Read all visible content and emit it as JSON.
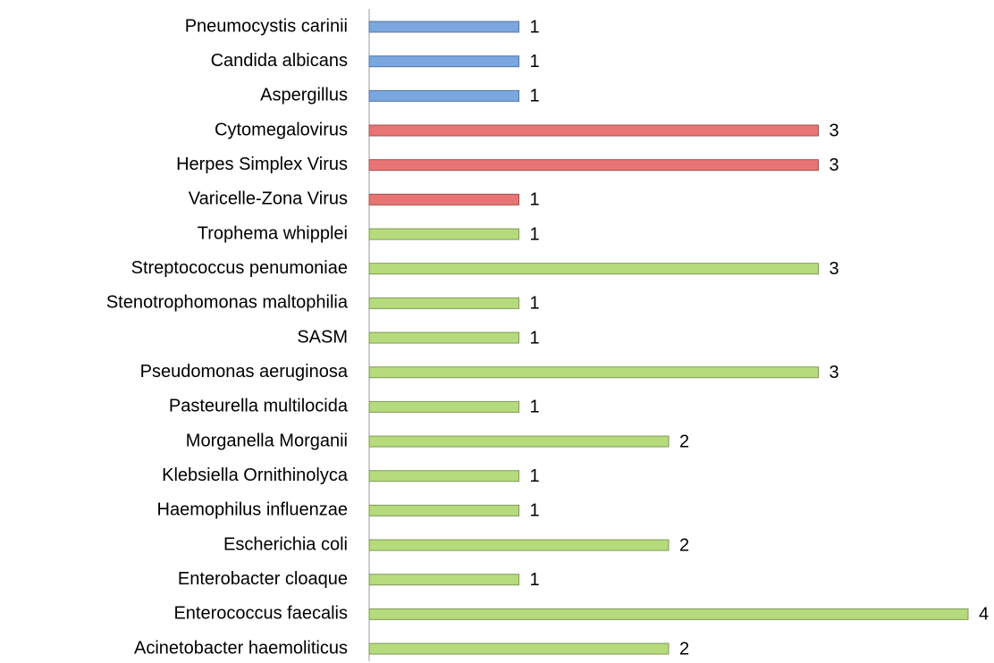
{
  "chart_data": {
    "type": "hbar",
    "categories": [
      "Pneumocystis carinii",
      "Candida albicans",
      "Aspergillus",
      "Cytomegalovirus",
      "Herpes Simplex Virus",
      "Varicelle-Zona Virus",
      "Trophema whipplei",
      "Streptococcus penumoniae",
      "Stenotrophomonas maltophilia",
      "SASM",
      "Pseudomonas aeruginosa",
      "Pasteurella multilocida",
      "Morganella Morganii",
      "Klebsiella Ornithinolyca",
      "Haemophilus influenzae",
      "Escherichia coli",
      "Enterobacter cloaque",
      "Enterococcus faecalis",
      "Acinetobacter haemoliticus"
    ],
    "values": [
      1,
      1,
      1,
      3,
      3,
      1,
      1,
      3,
      1,
      1,
      3,
      1,
      2,
      1,
      1,
      2,
      1,
      4,
      2
    ],
    "colors": [
      "#7ba7e0",
      "#7ba7e0",
      "#7ba7e0",
      "#e87474",
      "#e87474",
      "#e87474",
      "#b6db7c",
      "#b6db7c",
      "#b6db7c",
      "#b6db7c",
      "#b6db7c",
      "#b6db7c",
      "#b6db7c",
      "#b6db7c",
      "#b6db7c",
      "#b6db7c",
      "#b6db7c",
      "#b6db7c",
      "#b6db7c"
    ],
    "xlim": [
      0,
      4
    ]
  }
}
